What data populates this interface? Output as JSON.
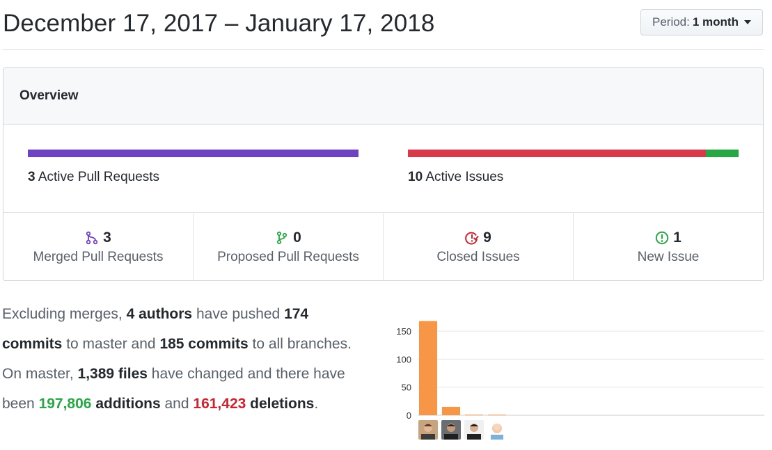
{
  "header": {
    "title": "December 17, 2017 – January 17, 2018",
    "period_label": "Period:",
    "period_value": "1 month"
  },
  "overview": {
    "title": "Overview",
    "pull_requests": {
      "count": "3",
      "label": "Active Pull Requests",
      "merged_fraction": 1.0,
      "color": "#6f42c1"
    },
    "issues": {
      "count": "10",
      "label": "Active Issues",
      "closed": 9,
      "new": 1,
      "closed_color": "#d73a49",
      "new_color": "#28a745"
    }
  },
  "stats": [
    {
      "icon": "merge-icon",
      "count": "3",
      "label": "Merged Pull Requests",
      "color": "#6f42c1"
    },
    {
      "icon": "branch-icon",
      "count": "0",
      "label": "Proposed Pull Requests",
      "color": "#28a745"
    },
    {
      "icon": "issue-closed-icon",
      "count": "9",
      "label": "Closed Issues",
      "color": "#cb2431"
    },
    {
      "icon": "issue-opened-icon",
      "count": "1",
      "label": "New Issue",
      "color": "#28a745"
    }
  ],
  "summary": {
    "t1": "Excluding merges, ",
    "authors": "4 authors",
    "t2": " have pushed ",
    "commits_master": "174 commits",
    "t3": " to master and ",
    "commits_all": "185 commits",
    "t4": " to all branches. On master, ",
    "files": "1,389 files",
    "t5": " have changed and there have been ",
    "additions_num": "197,806",
    "additions_word": "additions",
    "t6": " and ",
    "deletions_num": "161,423",
    "deletions_word": "deletions",
    "t7": "."
  },
  "chart_data": {
    "type": "bar",
    "categories": [
      "author-1",
      "author-2",
      "author-3",
      "author-4"
    ],
    "values": [
      168,
      15,
      1,
      1
    ],
    "yticks": [
      0,
      50,
      100,
      150
    ],
    "ylim": [
      0,
      170
    ],
    "color": "#f79646",
    "grid": true
  }
}
